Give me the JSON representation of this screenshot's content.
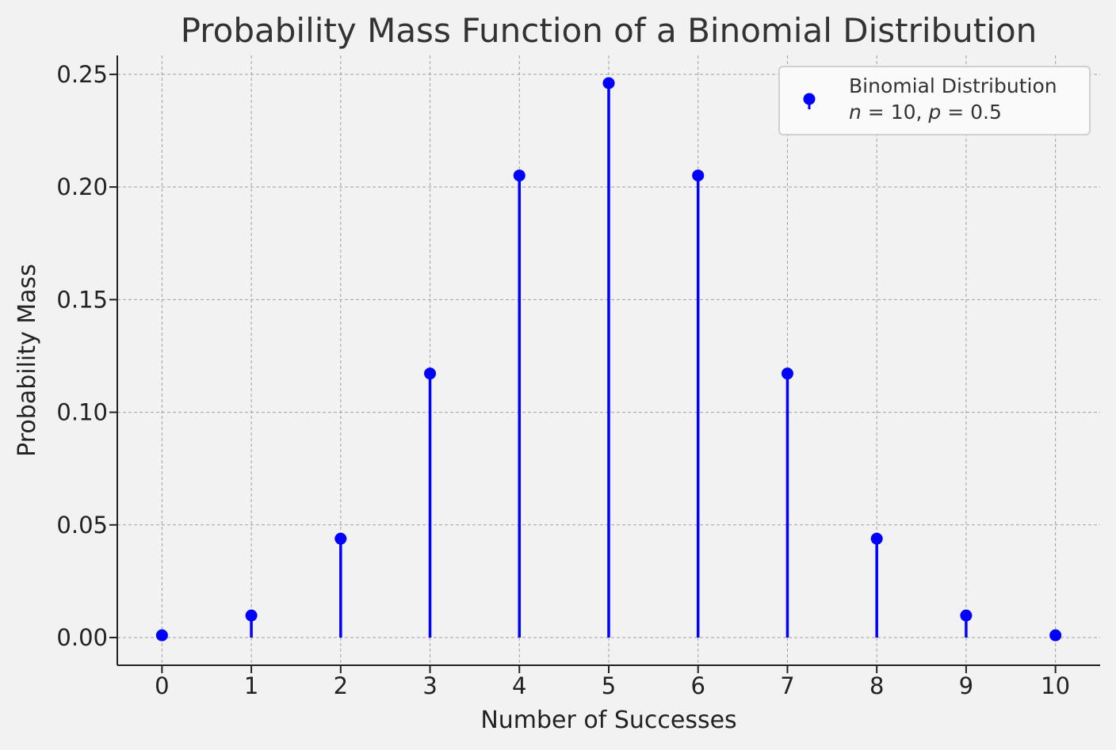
{
  "chart_data": {
    "type": "stem",
    "title": "Probability Mass Function of a Binomial Distribution",
    "xlabel": "Number of Successes",
    "ylabel": "Probability Mass",
    "x": [
      0,
      1,
      2,
      3,
      4,
      5,
      6,
      7,
      8,
      9,
      10
    ],
    "series": [
      {
        "name": "Binomial Distribution",
        "values": [
          0.001,
          0.0098,
          0.0439,
          0.1172,
          0.2051,
          0.2461,
          0.2051,
          0.1172,
          0.0439,
          0.0098,
          0.001
        ],
        "color": "#0000ff"
      }
    ],
    "legend": {
      "line1": "Binomial Distribution",
      "line2_n": "n",
      "line2_eq1": " = 10, ",
      "line2_p": "p",
      "line2_eq2": " = 0.5",
      "placement": "top-right"
    },
    "xticks": [
      "0",
      "1",
      "2",
      "3",
      "4",
      "5",
      "6",
      "7",
      "8",
      "9",
      "10"
    ],
    "yticks": [
      "0.00",
      "0.05",
      "0.10",
      "0.15",
      "0.20",
      "0.25"
    ],
    "ytick_values": [
      0,
      0.05,
      0.1,
      0.15,
      0.2,
      0.25
    ],
    "xlim": [
      -0.5,
      10.5
    ],
    "ylim": [
      -0.0123,
      0.2584
    ],
    "grid": true,
    "colors": {
      "background": "#f2f2f2",
      "grid": "#a0a0a0",
      "axis": "#222222",
      "stem": "#0000ff"
    }
  }
}
